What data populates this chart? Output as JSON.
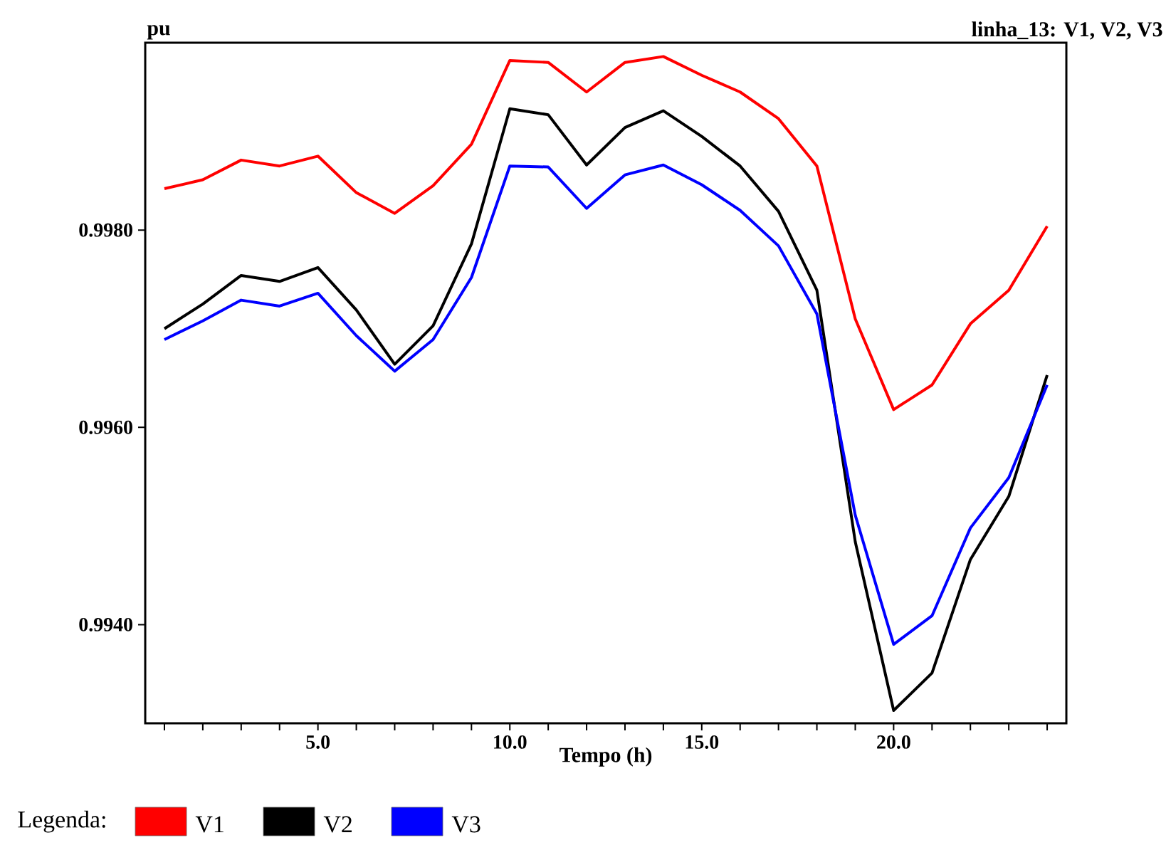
{
  "chart_data": {
    "type": "line",
    "title": "linha_13:  V1,  V2,  V3",
    "xlabel": "Tempo (h)",
    "ylabel": "pu",
    "legend_title": "Legenda:",
    "legend": "bottom",
    "line_style": "solid",
    "grid": false,
    "x": [
      1,
      2,
      3,
      4,
      5,
      6,
      7,
      8,
      9,
      10,
      11,
      12,
      13,
      14,
      15,
      16,
      17,
      18,
      19,
      20,
      21,
      22,
      23,
      24
    ],
    "xlim": [
      0.5,
      24.5
    ],
    "xticks": [
      {
        "value": 1,
        "label": null
      },
      {
        "value": 2,
        "label": null
      },
      {
        "value": 3,
        "label": null
      },
      {
        "value": 4,
        "label": null
      },
      {
        "value": 5,
        "label": "5.0"
      },
      {
        "value": 6,
        "label": null
      },
      {
        "value": 7,
        "label": null
      },
      {
        "value": 8,
        "label": null
      },
      {
        "value": 9,
        "label": null
      },
      {
        "value": 10,
        "label": "10.0"
      },
      {
        "value": 11,
        "label": null
      },
      {
        "value": 12,
        "label": null
      },
      {
        "value": 13,
        "label": null
      },
      {
        "value": 14,
        "label": null
      },
      {
        "value": 15,
        "label": "15.0"
      },
      {
        "value": 16,
        "label": null
      },
      {
        "value": 17,
        "label": null
      },
      {
        "value": 18,
        "label": null
      },
      {
        "value": 19,
        "label": null
      },
      {
        "value": 20,
        "label": "20.0"
      },
      {
        "value": 21,
        "label": null
      },
      {
        "value": 22,
        "label": null
      },
      {
        "value": 23,
        "label": null
      },
      {
        "value": 24,
        "label": null
      }
    ],
    "ylim": [
      0.993,
      0.9999
    ],
    "yticks": [
      {
        "value": 0.994,
        "label": "0.9940"
      },
      {
        "value": 0.996,
        "label": "0.9960"
      },
      {
        "value": 0.998,
        "label": "0.9980"
      }
    ],
    "series": [
      {
        "name": "V1",
        "color": "#ff0000",
        "values": [
          0.99842,
          0.99851,
          0.99871,
          0.99865,
          0.99875,
          0.99838,
          0.99817,
          0.99845,
          0.99887,
          0.99972,
          0.9997,
          0.9994,
          0.9997,
          0.99976,
          0.99957,
          0.9994,
          0.99913,
          0.99865,
          0.9971,
          0.99618,
          0.99643,
          0.99705,
          0.99739,
          0.99804
        ]
      },
      {
        "name": "V2",
        "color": "#000000",
        "values": [
          0.997,
          0.99725,
          0.99754,
          0.99748,
          0.99762,
          0.99719,
          0.99664,
          0.99703,
          0.99786,
          0.99923,
          0.99917,
          0.99866,
          0.99904,
          0.99921,
          0.99895,
          0.99865,
          0.99819,
          0.99739,
          0.99484,
          0.99313,
          0.99351,
          0.99466,
          0.9953,
          0.99653
        ]
      },
      {
        "name": "V3",
        "color": "#0000ff",
        "values": [
          0.99689,
          0.99708,
          0.99729,
          0.99723,
          0.99736,
          0.99693,
          0.99657,
          0.99689,
          0.99752,
          0.99865,
          0.99864,
          0.99822,
          0.99856,
          0.99866,
          0.99846,
          0.9982,
          0.99784,
          0.99715,
          0.99511,
          0.9938,
          0.99409,
          0.99498,
          0.99549,
          0.99643
        ]
      }
    ]
  }
}
